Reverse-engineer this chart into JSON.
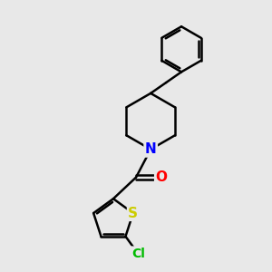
{
  "bg_color": "#e8e8e8",
  "bond_color": "#000000",
  "bond_width": 1.8,
  "atom_colors": {
    "N": "#0000ff",
    "O": "#ff0000",
    "S": "#cccc00",
    "Cl": "#00bb00",
    "C": "#000000"
  },
  "font_size": 10,
  "title": ""
}
